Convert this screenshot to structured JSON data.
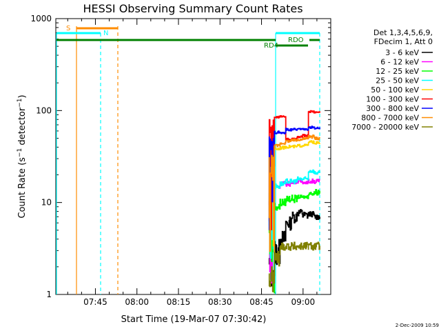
{
  "chart_data": {
    "type": "line",
    "title": "HESSI Observing Summary Count Rates",
    "xlabel": "Start Time (19-Mar-07 07:30:42)",
    "ylabel": "Count Rate (s⁻¹ detector⁻¹)",
    "ylabel_main": "Count Rate (s",
    "ylabel_sup1": "−1",
    "ylabel_mid": " detector",
    "ylabel_sup2": "−1",
    "ylabel_end": ")",
    "y_scale": "log",
    "ylim": [
      1,
      1000
    ],
    "xlim": [
      "07:30:42",
      "09:10:00"
    ],
    "x_ticks": [
      "07:45",
      "08:00",
      "08:15",
      "08:30",
      "08:45",
      "09:00"
    ],
    "y_ticks": [
      "1",
      "10",
      "100",
      "1000"
    ],
    "legend_position": "right",
    "legend_header": [
      "Det 1,3,4,5,6,9,",
      "FDecim 1, Att 0"
    ],
    "series": [
      {
        "name": "3 - 6 keV",
        "color": "#000000",
        "values": [
          [
            0,
            1,
            3
          ],
          [
            1,
            2,
            4
          ],
          [
            2,
            3,
            5
          ],
          [
            3,
            5,
            7
          ],
          [
            4,
            6,
            8
          ],
          [
            5,
            7,
            8.5
          ],
          [
            6,
            6.5,
            8
          ],
          [
            7,
            7,
            8
          ],
          [
            8,
            6.5,
            7.5
          ]
        ]
      },
      {
        "name": "6 - 12 keV",
        "color": "#ff00ff",
        "values": [
          [
            0,
            1,
            15
          ],
          [
            1,
            14,
            16
          ],
          [
            2,
            16,
            17
          ],
          [
            3,
            15,
            17
          ],
          [
            4,
            16,
            17
          ],
          [
            5,
            16,
            18
          ],
          [
            6,
            16,
            17
          ],
          [
            7,
            16,
            18
          ],
          [
            8,
            16,
            18
          ]
        ]
      },
      {
        "name": "12 - 25 keV",
        "color": "#00ff00",
        "values": [
          [
            0,
            1,
            9
          ],
          [
            1,
            8,
            10
          ],
          [
            2,
            9,
            11
          ],
          [
            3,
            10,
            12
          ],
          [
            4,
            10,
            12
          ],
          [
            5,
            11,
            12
          ],
          [
            6,
            11,
            12
          ],
          [
            7,
            12,
            13
          ],
          [
            8,
            12,
            14
          ]
        ]
      },
      {
        "name": "25 - 50 keV",
        "color": "#00ffff",
        "values": [
          [
            0,
            1,
            15
          ],
          [
            1,
            14,
            16
          ],
          [
            2,
            15,
            17
          ],
          [
            3,
            16,
            18
          ],
          [
            4,
            16,
            18
          ],
          [
            5,
            17,
            19
          ],
          [
            6,
            17,
            19
          ],
          [
            7,
            21,
            23
          ],
          [
            8,
            20,
            22
          ]
        ]
      },
      {
        "name": "50 - 100 keV",
        "color": "#ffd700",
        "values": [
          [
            0,
            1,
            36
          ],
          [
            1,
            37,
            40
          ],
          [
            2,
            38,
            41
          ],
          [
            3,
            39,
            42
          ],
          [
            4,
            39,
            42
          ],
          [
            5,
            40,
            43
          ],
          [
            6,
            41,
            43
          ],
          [
            7,
            44,
            47
          ],
          [
            8,
            43,
            46
          ]
        ]
      },
      {
        "name": "100 - 300 keV",
        "color": "#ff0000",
        "values": [
          [
            0,
            1,
            80
          ],
          [
            1,
            83,
            87
          ],
          [
            2,
            85,
            88
          ],
          [
            3,
            47,
            50
          ],
          [
            4,
            48,
            50
          ],
          [
            5,
            50,
            53
          ],
          [
            6,
            52,
            55
          ],
          [
            7,
            95,
            100
          ],
          [
            8,
            94,
            98
          ]
        ]
      },
      {
        "name": "300 - 800 keV",
        "color": "#0000ff",
        "values": [
          [
            0,
            1,
            55
          ],
          [
            1,
            56,
            60
          ],
          [
            2,
            56,
            58
          ],
          [
            3,
            60,
            64
          ],
          [
            4,
            61,
            64
          ],
          [
            5,
            62,
            64
          ],
          [
            6,
            61,
            65
          ],
          [
            7,
            63,
            68
          ],
          [
            8,
            63,
            66
          ]
        ]
      },
      {
        "name": "800 - 7000 keV",
        "color": "#ff8c00",
        "values": [
          [
            0,
            1,
            38
          ],
          [
            1,
            40,
            43
          ],
          [
            2,
            43,
            45
          ],
          [
            3,
            45,
            48
          ],
          [
            4,
            46,
            49
          ],
          [
            5,
            47,
            50
          ],
          [
            6,
            48,
            51
          ],
          [
            7,
            50,
            55
          ],
          [
            8,
            48,
            52
          ]
        ]
      },
      {
        "name": "7000 - 20000 keV",
        "color": "#808000",
        "values": [
          [
            0,
            1,
            2
          ],
          [
            1,
            2,
            3
          ],
          [
            2,
            3,
            3.7
          ],
          [
            3,
            3,
            3.7
          ],
          [
            4,
            3,
            3.7
          ],
          [
            5,
            3,
            3.7
          ],
          [
            6,
            3,
            3.7
          ],
          [
            7,
            3,
            3.7
          ],
          [
            8,
            3,
            3.7
          ]
        ]
      }
    ],
    "flags": [
      {
        "name": "S",
        "color": "#ff8c00",
        "label": "S"
      },
      {
        "name": "N",
        "color": "#00ffff",
        "label": "N"
      },
      {
        "name": "RDO",
        "color": "#008000",
        "label": "RDO"
      },
      {
        "name": "RD4",
        "color": "#008000",
        "label": "RD4"
      }
    ],
    "timestamp": "2-Dec-2009 10:59"
  }
}
